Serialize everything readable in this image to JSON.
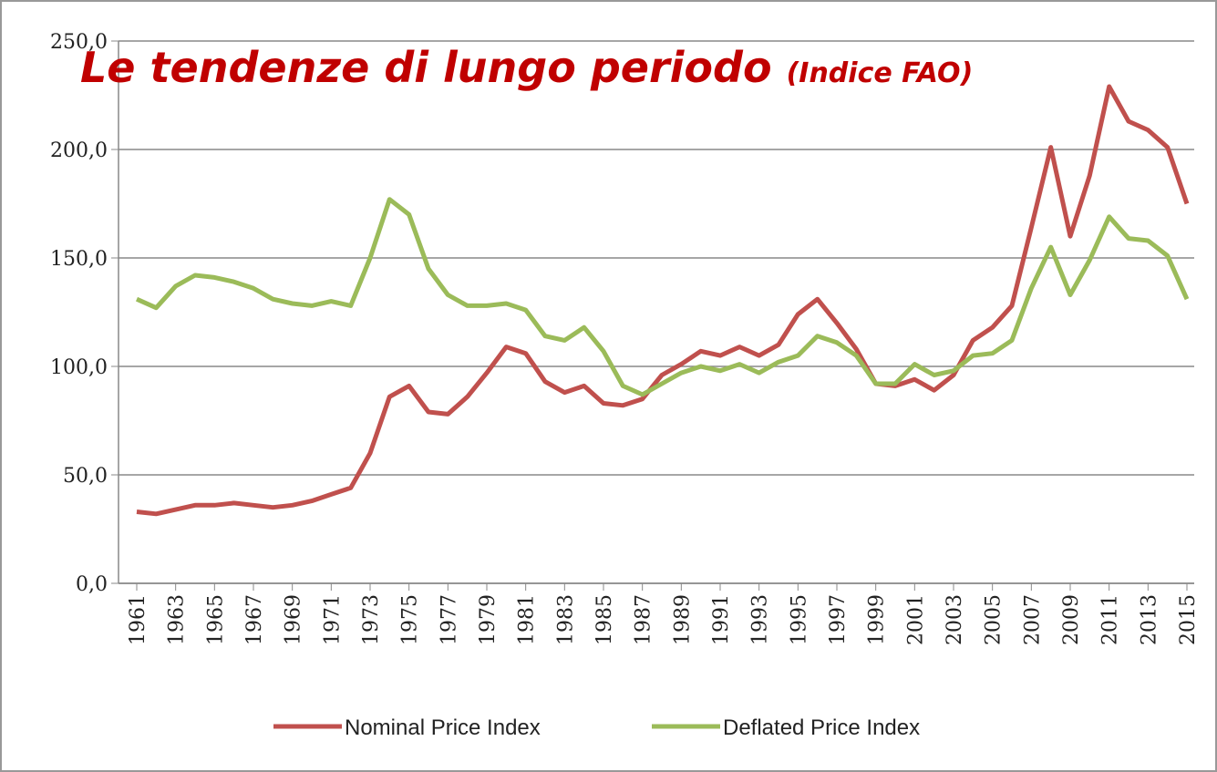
{
  "chart_data": {
    "type": "line",
    "title": "Le tendenze di lungo periodo",
    "subtitle": "(Indice FAO)",
    "x": [
      1961,
      1962,
      1963,
      1964,
      1965,
      1966,
      1967,
      1968,
      1969,
      1970,
      1971,
      1972,
      1973,
      1974,
      1975,
      1976,
      1977,
      1978,
      1979,
      1980,
      1981,
      1982,
      1983,
      1984,
      1985,
      1986,
      1987,
      1988,
      1989,
      1990,
      1991,
      1992,
      1993,
      1994,
      1995,
      1996,
      1997,
      1998,
      1999,
      2000,
      2001,
      2002,
      2003,
      2004,
      2005,
      2006,
      2007,
      2008,
      2009,
      2010,
      2011,
      2012,
      2013,
      2014,
      2015
    ],
    "series": [
      {
        "name": "Nominal Price Index",
        "color": "#c0504d",
        "values": [
          33,
          32,
          34,
          36,
          36,
          37,
          36,
          35,
          36,
          38,
          41,
          44,
          60,
          86,
          91,
          79,
          78,
          86,
          97,
          109,
          106,
          93,
          88,
          91,
          83,
          82,
          85,
          96,
          101,
          107,
          105,
          109,
          105,
          110,
          124,
          131,
          120,
          108,
          92,
          91,
          94,
          89,
          96,
          112,
          118,
          128,
          164,
          201,
          160,
          188,
          229,
          213,
          209,
          201,
          175
        ]
      },
      {
        "name": "Deflated Price Index",
        "color": "#9bbb59",
        "values": [
          131,
          127,
          137,
          142,
          141,
          139,
          136,
          131,
          129,
          128,
          130,
          128,
          150,
          177,
          170,
          145,
          133,
          128,
          128,
          129,
          126,
          114,
          112,
          118,
          107,
          91,
          87,
          92,
          97,
          100,
          98,
          101,
          97,
          102,
          105,
          114,
          111,
          105,
          92,
          92,
          101,
          96,
          98,
          105,
          106,
          112,
          136,
          155,
          133,
          149,
          169,
          159,
          158,
          151,
          131
        ]
      }
    ],
    "xlim": [
      1961,
      2015
    ],
    "xticks": [
      1961,
      1963,
      1965,
      1967,
      1969,
      1971,
      1973,
      1975,
      1977,
      1979,
      1981,
      1983,
      1985,
      1987,
      1989,
      1991,
      1993,
      1995,
      1997,
      1999,
      2001,
      2003,
      2005,
      2007,
      2009,
      2011,
      2013,
      2015
    ],
    "ylim": [
      0,
      250
    ],
    "yticks": [
      {
        "value": 0,
        "label": "0,0"
      },
      {
        "value": 50,
        "label": "50,0"
      },
      {
        "value": 100,
        "label": "100,0"
      },
      {
        "value": 150,
        "label": "150,0"
      },
      {
        "value": 200,
        "label": "200,0"
      },
      {
        "value": 250,
        "label": "250,0"
      }
    ],
    "grid": true,
    "legend": "bottom"
  }
}
